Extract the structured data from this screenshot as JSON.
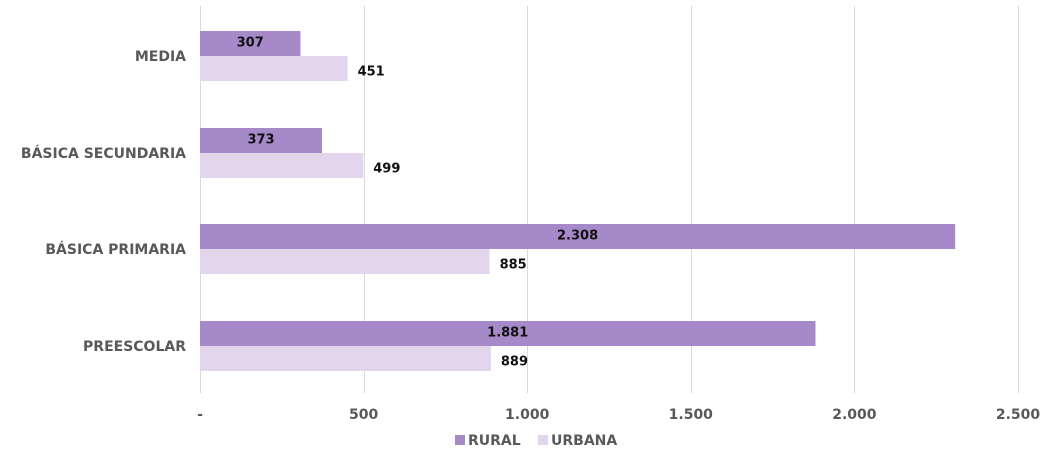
{
  "chart_data": {
    "type": "bar",
    "orientation": "horizontal",
    "categories": [
      "MEDIA",
      "BÁSICA SECUNDARIA",
      "BÁSICA PRIMARIA",
      "PREESCOLAR"
    ],
    "series": [
      {
        "name": "RURAL",
        "color": "#a689c9",
        "values": [
          307,
          373,
          2308,
          1881
        ],
        "labels": [
          "307",
          "373",
          "2.308",
          "1.881"
        ]
      },
      {
        "name": "URBANA",
        "color": "#e2d5ec",
        "values": [
          451,
          499,
          885,
          889
        ],
        "labels": [
          "451",
          "499",
          "885",
          "889"
        ]
      }
    ],
    "xlim": [
      0,
      2500
    ],
    "xticks": [
      0,
      500,
      1000,
      1500,
      2000,
      2500
    ],
    "xtick_labels": [
      "-",
      "500",
      "1.000",
      "1.500",
      "2.000",
      "2.500"
    ],
    "grid": true,
    "legend_position": "bottom",
    "title": "",
    "xlabel": "",
    "ylabel": ""
  }
}
